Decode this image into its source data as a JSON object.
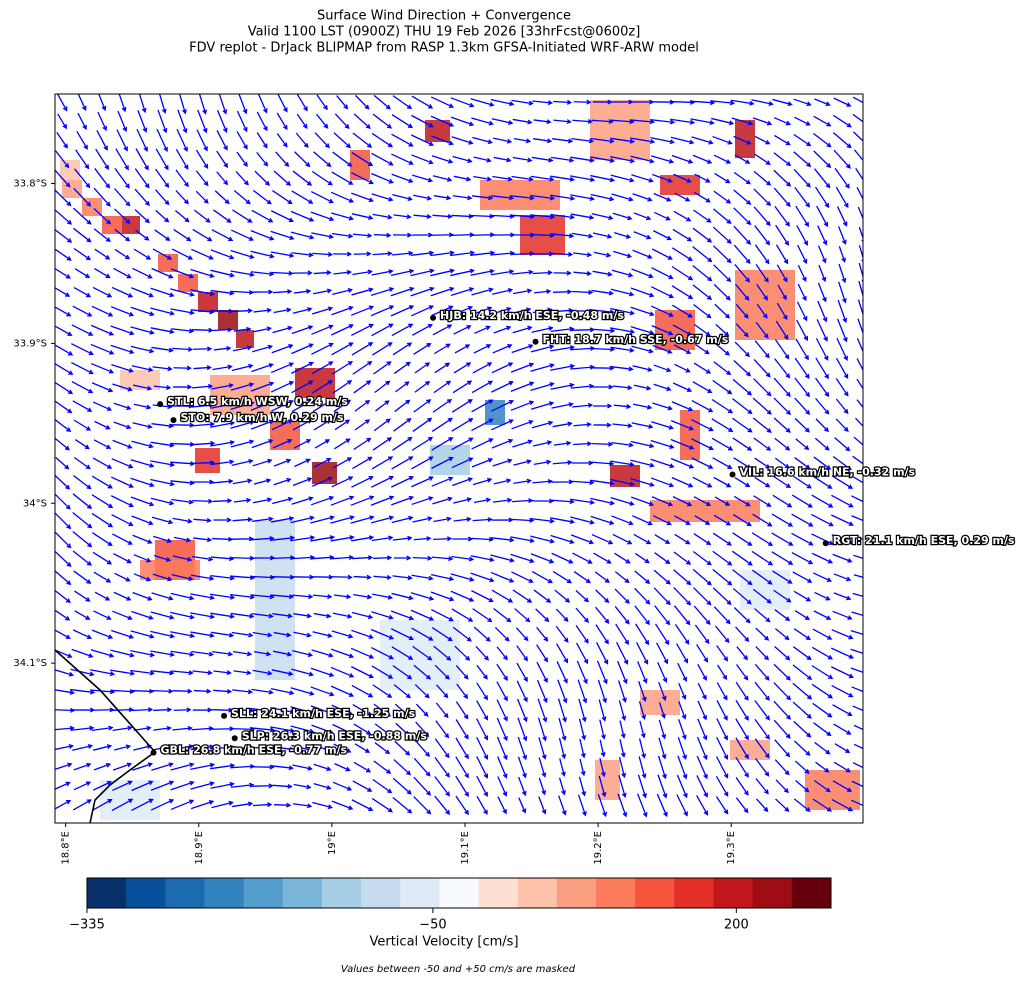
{
  "title": [
    "Surface Wind Direction + Convergence",
    "Valid 1100 LST (0900Z) THU 19 Feb 2026 [33hrFcst@0600z]",
    "FDV replot - DrJack BLIPMAP from RASP 1.3km GFSA-Initiated WRF-ARW model"
  ],
  "map": {
    "xlim": [
      18.792,
      19.399
    ],
    "ylim": [
      -34.2,
      -33.744
    ],
    "xticks": [
      {
        "value": 18.8,
        "label": "18.8°E"
      },
      {
        "value": 18.9,
        "label": "18.9°E"
      },
      {
        "value": 19.0,
        "label": "19°E"
      },
      {
        "value": 19.1,
        "label": "19.1°E"
      },
      {
        "value": 19.2,
        "label": "19.2°E"
      },
      {
        "value": 19.3,
        "label": "19.3°E"
      }
    ],
    "yticks": [
      {
        "value": -33.8,
        "label": "33.8°S"
      },
      {
        "value": -33.9,
        "label": "33.9°S"
      },
      {
        "value": -34.0,
        "label": "34°S"
      },
      {
        "value": -34.1,
        "label": "34.1°S"
      }
    ],
    "stations": [
      {
        "label": "HJB: 14.2 km/h ESE, -0.48 m/s",
        "lon": 19.076,
        "lat": -33.884
      },
      {
        "label": "FHT: 18.7 km/h SSE, -0.67 m/s",
        "lon": 19.153,
        "lat": -33.899
      },
      {
        "label": "STL: 6.5 km/h WSW, 0.24 m/s",
        "lon": 18.871,
        "lat": -33.938
      },
      {
        "label": "STO: 7.9 km/h W, 0.29 m/s",
        "lon": 18.881,
        "lat": -33.948
      },
      {
        "label": "VIL: 16.6 km/h NE, -0.32 m/s",
        "lon": 19.301,
        "lat": -33.982
      },
      {
        "label": "RGT: 21.1 km/h ESE, 0.29 m/s",
        "lon": 19.371,
        "lat": -34.025
      },
      {
        "label": "SLL: 24.1 km/h ESE, -1.25 m/s",
        "lon": 18.919,
        "lat": -34.133
      },
      {
        "label": "SLP: 26.3 km/h ESE, -0.88 m/s",
        "lon": 18.927,
        "lat": -34.147
      },
      {
        "label": "GBL: 26.8 km/h ESE, -0.77 m/s",
        "lon": 18.866,
        "lat": -34.156
      }
    ]
  },
  "colorbar": {
    "label": "Vertical Velocity [cm/s]",
    "clim": [
      -335,
      278
    ],
    "ticks": [
      {
        "value": -335,
        "label": "−335"
      },
      {
        "value": -50,
        "label": "−50"
      },
      200
    ],
    "colors": [
      "#08306b",
      "#08509b",
      "#1c6aaf",
      "#3383be",
      "#539ecd",
      "#7ab6d9",
      "#a6cee4",
      "#c8dcf0",
      "#deebf7",
      "#f7fbff",
      "#fee0d3",
      "#fcc2aa",
      "#fc9f81",
      "#fb7b5b",
      "#f5553c",
      "#e32f27",
      "#c1161b",
      "#9e0d14",
      "#67000d"
    ]
  },
  "note": "Values between -50 and +50 cm/s are masked"
}
